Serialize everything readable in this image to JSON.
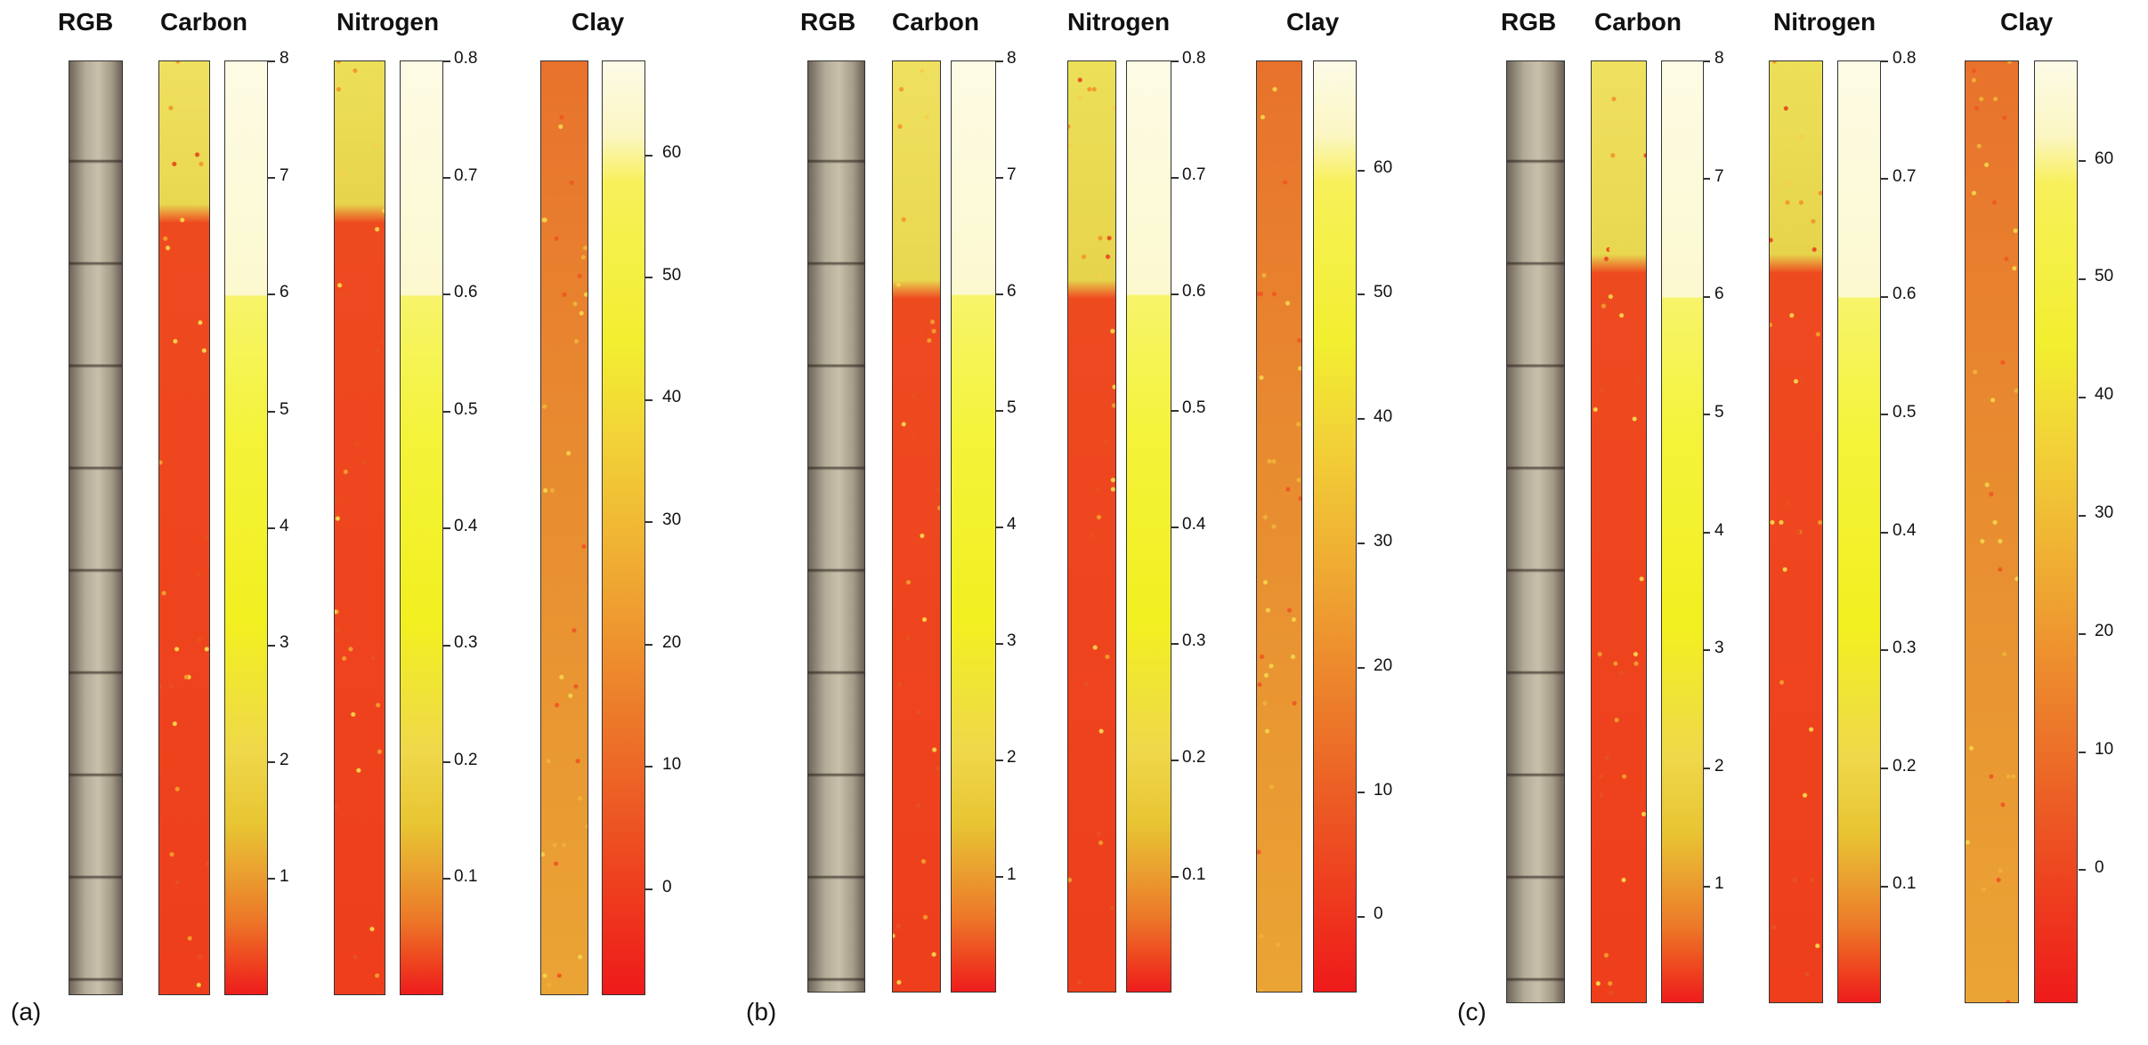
{
  "panels": [
    {
      "label": "(a)",
      "headers": {
        "rgb": "RGB",
        "carbon": "Carbon",
        "nitrogen": "Nitrogen",
        "clay": "Clay"
      },
      "carbon_ticks": [
        "8",
        "7",
        "6",
        "5",
        "4",
        "3",
        "2",
        "1"
      ],
      "nitrogen_ticks": [
        "0.8",
        "0.7",
        "0.6",
        "0.5",
        "0.4",
        "0.3",
        "0.2",
        "0.1"
      ],
      "clay_ticks": [
        "60",
        "50",
        "40",
        "30",
        "20",
        "10",
        "0"
      ]
    },
    {
      "label": "(b)",
      "headers": {
        "rgb": "RGB",
        "carbon": "Carbon",
        "nitrogen": "Nitrogen",
        "clay": "Clay"
      },
      "carbon_ticks": [
        "8",
        "7",
        "6",
        "5",
        "4",
        "3",
        "2",
        "1"
      ],
      "nitrogen_ticks": [
        "0.8",
        "0.7",
        "0.6",
        "0.5",
        "0.4",
        "0.3",
        "0.2",
        "0.1"
      ],
      "clay_ticks": [
        "60",
        "50",
        "40",
        "30",
        "20",
        "10",
        "0"
      ]
    },
    {
      "label": "(c)",
      "headers": {
        "rgb": "RGB",
        "carbon": "Carbon",
        "nitrogen": "Nitrogen",
        "clay": "Clay"
      },
      "carbon_ticks": [
        "8",
        "7",
        "6",
        "5",
        "4",
        "3",
        "2",
        "1"
      ],
      "nitrogen_ticks": [
        "0.8",
        "0.7",
        "0.6",
        "0.5",
        "0.4",
        "0.3",
        "0.2",
        "0.1"
      ],
      "clay_ticks": [
        "60",
        "50",
        "40",
        "30",
        "20",
        "10",
        "0"
      ]
    }
  ],
  "colors": {
    "soil_rgb": "#9a9080",
    "carbon_high": "#e8dc50",
    "carbon_low": "#ee3b1c",
    "clay_map": "#e88a30",
    "scale_top": "#fdfbe0",
    "scale_yellow": "#f2f020",
    "scale_red": "#ee1c1c"
  }
}
